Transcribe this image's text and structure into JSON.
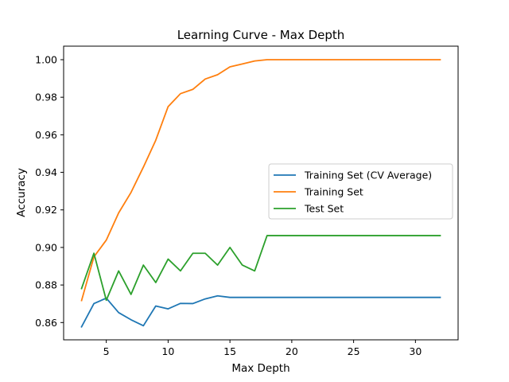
{
  "chart_data": {
    "type": "line",
    "title": "Learning Curve - Max Depth",
    "xlabel": "Max Depth",
    "ylabel": "Accuracy",
    "xlim": [
      1.55,
      33.45
    ],
    "ylim": [
      0.8508,
      1.0072
    ],
    "xticks": [
      5,
      10,
      15,
      20,
      25,
      30
    ],
    "xtick_labels": [
      "5",
      "10",
      "15",
      "20",
      "25",
      "30"
    ],
    "yticks": [
      0.86,
      0.88,
      0.9,
      0.92,
      0.94,
      0.96,
      0.98,
      1.0
    ],
    "ytick_labels": [
      "0.86",
      "0.88",
      "0.90",
      "0.92",
      "0.94",
      "0.96",
      "0.98",
      "1.00"
    ],
    "grid": false,
    "legend_position": "center-right",
    "x": [
      3,
      4,
      5,
      6,
      7,
      8,
      9,
      10,
      11,
      12,
      13,
      14,
      15,
      16,
      17,
      18,
      19,
      20,
      21,
      22,
      23,
      24,
      25,
      26,
      27,
      28,
      29,
      30,
      31,
      32
    ],
    "series": [
      {
        "name": "Training Set (CV Average)",
        "color": "#1f77b4",
        "values": [
          0.8577,
          0.8701,
          0.873,
          0.8653,
          0.8615,
          0.8583,
          0.8688,
          0.8673,
          0.8702,
          0.8701,
          0.8726,
          0.8742,
          0.8734,
          0.8734,
          0.8734,
          0.8734,
          0.8734,
          0.8734,
          0.8734,
          0.8734,
          0.8734,
          0.8734,
          0.8734,
          0.8734,
          0.8734,
          0.8734,
          0.8734,
          0.8734,
          0.8734,
          0.8734
        ]
      },
      {
        "name": "Training Set",
        "color": "#ff7f0e",
        "values": [
          0.8717,
          0.895,
          0.9039,
          0.9184,
          0.9293,
          0.9428,
          0.9571,
          0.975,
          0.9819,
          0.9842,
          0.9897,
          0.992,
          0.9962,
          0.9977,
          0.9993,
          1.0,
          1.0,
          1.0,
          1.0,
          1.0,
          1.0,
          1.0,
          1.0,
          1.0,
          1.0,
          1.0,
          1.0,
          1.0,
          1.0,
          1.0
        ]
      },
      {
        "name": "Test Set",
        "color": "#2ca02c",
        "values": [
          0.8781,
          0.8969,
          0.8719,
          0.8875,
          0.875,
          0.8906,
          0.8813,
          0.8938,
          0.8875,
          0.8969,
          0.8969,
          0.8906,
          0.9,
          0.8906,
          0.8875,
          0.9063,
          0.9063,
          0.9063,
          0.9063,
          0.9063,
          0.9063,
          0.9063,
          0.9063,
          0.9063,
          0.9063,
          0.9063,
          0.9063,
          0.9063,
          0.9063,
          0.9063
        ]
      }
    ]
  }
}
